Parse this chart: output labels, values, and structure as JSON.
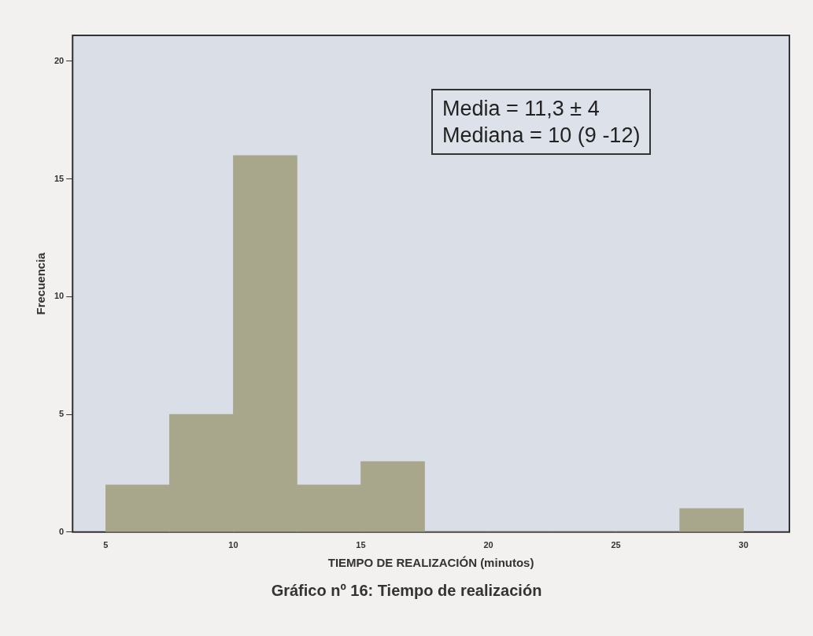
{
  "chart_data": {
    "type": "histogram",
    "xlabel": "TIEMPO DE REALIZACIÓN (minutos)",
    "ylabel": "Frecuencia",
    "bins": [
      5,
      7.5,
      10,
      12.5,
      15,
      17.5,
      20,
      22.5,
      25,
      27.5,
      30
    ],
    "values": [
      2,
      5,
      16,
      2,
      3,
      0,
      0,
      0,
      0,
      1
    ],
    "color": "#a8a78c",
    "xlim": [
      3.7,
      31.8
    ],
    "xticks": [
      5,
      10,
      15,
      20,
      25,
      30
    ],
    "ylim": [
      0,
      21.1
    ],
    "yticks": [
      0,
      5,
      10,
      15,
      20
    ],
    "grid": false,
    "legend": false,
    "annotations": [
      "Media = 11,3 ± 4",
      "Mediana = 10 (9 -12)",
      "Gráfico nº 16: Tiempo de realización"
    ]
  }
}
